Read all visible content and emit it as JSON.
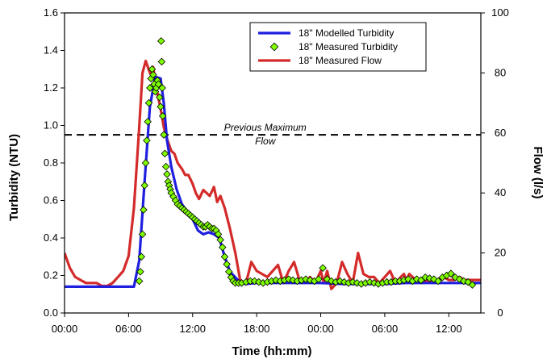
{
  "chart_data": {
    "type": "line",
    "title": "",
    "xlabel": "Time (hh:mm)",
    "ylabel_left": "Turbidity (NTU)",
    "ylabel_right": "Flow (l/s)",
    "x_unit": "hours from first 00:00",
    "xlim": [
      0,
      39
    ],
    "ylim_left": [
      0,
      1.6
    ],
    "ylim_right": [
      0,
      100
    ],
    "x_ticks": [
      {
        "value": 0,
        "label": "00:00"
      },
      {
        "value": 6,
        "label": "06:00"
      },
      {
        "value": 12,
        "label": "12:00"
      },
      {
        "value": 18,
        "label": "18:00"
      },
      {
        "value": 24,
        "label": "00:00"
      },
      {
        "value": 30,
        "label": "06:00"
      },
      {
        "value": 36,
        "label": "12:00"
      }
    ],
    "y_left_ticks": [
      "0.0",
      "0.2",
      "0.4",
      "0.6",
      "0.8",
      "1.0",
      "1.2",
      "1.4",
      "1.6"
    ],
    "y_right_ticks": [
      "0",
      "20",
      "40",
      "60",
      "80",
      "100"
    ],
    "legend": {
      "placement": "top-right"
    },
    "reference_line": {
      "axis": "left",
      "value": 0.95,
      "label_line1": "Previous Maximum",
      "label_line2": "Flow"
    },
    "series": [
      {
        "name": "18\" Modelled Turbidity",
        "axis": "left",
        "style": "line",
        "color": "#1f1fe0",
        "x": [
          0,
          6.5,
          7.0,
          7.5,
          8.0,
          8.5,
          9.0,
          9.3,
          9.6,
          10.0,
          10.5,
          11.0,
          11.5,
          12.0,
          12.5,
          13.0,
          13.5,
          14.0,
          14.5,
          15.0,
          15.5,
          16.0,
          16.5,
          17.0,
          18.0,
          20.0,
          22.0,
          24.0,
          26.0,
          28.0,
          30.0,
          32.0,
          34.0,
          36.0,
          38.0,
          39.0
        ],
        "y": [
          0.14,
          0.14,
          0.28,
          0.7,
          1.1,
          1.26,
          1.25,
          1.12,
          0.92,
          0.78,
          0.66,
          0.58,
          0.54,
          0.5,
          0.44,
          0.42,
          0.43,
          0.42,
          0.4,
          0.3,
          0.22,
          0.19,
          0.16,
          0.155,
          0.16,
          0.16,
          0.16,
          0.16,
          0.155,
          0.155,
          0.155,
          0.16,
          0.16,
          0.16,
          0.16,
          0.16
        ]
      },
      {
        "name": "18\" Measured Turbidity",
        "axis": "left",
        "style": "marker",
        "color": "#7fff00",
        "edge_color": "#000000",
        "x": [
          7.0,
          7.1,
          7.2,
          7.3,
          7.4,
          7.5,
          7.6,
          7.7,
          7.8,
          7.9,
          8.0,
          8.1,
          8.2,
          8.3,
          8.4,
          8.5,
          8.6,
          8.7,
          8.8,
          8.9,
          9.0,
          9.05,
          9.1,
          9.15,
          9.2,
          9.3,
          9.4,
          9.5,
          9.6,
          9.7,
          9.8,
          9.9,
          10.0,
          10.2,
          10.4,
          10.6,
          10.8,
          11.0,
          11.2,
          11.4,
          11.6,
          11.8,
          12.0,
          12.2,
          12.4,
          12.6,
          12.8,
          13.0,
          13.2,
          13.4,
          13.6,
          13.8,
          14.0,
          14.2,
          14.4,
          14.6,
          14.8,
          15.0,
          15.2,
          15.4,
          15.6,
          15.8,
          16.0,
          16.3,
          16.6,
          17.0,
          17.4,
          17.8,
          18.2,
          18.6,
          19.0,
          19.4,
          19.8,
          20.2,
          20.6,
          21.0,
          21.4,
          21.8,
          22.2,
          22.6,
          23.0,
          23.4,
          23.8,
          24.2,
          24.6,
          25.0,
          25.4,
          25.8,
          26.2,
          26.6,
          27.0,
          27.4,
          27.8,
          28.2,
          28.6,
          29.0,
          29.4,
          29.8,
          30.2,
          30.6,
          31.0,
          31.4,
          31.8,
          32.2,
          32.6,
          33.0,
          33.4,
          33.8,
          34.2,
          34.6,
          35.0,
          35.4,
          35.8,
          36.2,
          36.6,
          37.0,
          37.4,
          37.8,
          38.2
        ],
        "y": [
          0.17,
          0.22,
          0.3,
          0.42,
          0.55,
          0.68,
          0.8,
          0.92,
          1.02,
          1.12,
          1.2,
          1.25,
          1.3,
          1.27,
          1.22,
          1.18,
          1.2,
          1.24,
          1.22,
          1.15,
          1.1,
          1.45,
          1.34,
          1.2,
          1.05,
          0.95,
          0.85,
          0.78,
          0.74,
          0.7,
          0.68,
          0.66,
          0.64,
          0.62,
          0.6,
          0.58,
          0.57,
          0.56,
          0.55,
          0.54,
          0.53,
          0.52,
          0.51,
          0.5,
          0.49,
          0.48,
          0.47,
          0.46,
          0.46,
          0.47,
          0.46,
          0.45,
          0.45,
          0.44,
          0.42,
          0.39,
          0.35,
          0.3,
          0.26,
          0.22,
          0.19,
          0.17,
          0.16,
          0.16,
          0.16,
          0.165,
          0.17,
          0.17,
          0.165,
          0.16,
          0.165,
          0.17,
          0.175,
          0.17,
          0.175,
          0.18,
          0.175,
          0.17,
          0.175,
          0.18,
          0.175,
          0.17,
          0.18,
          0.24,
          0.18,
          0.17,
          0.165,
          0.17,
          0.165,
          0.16,
          0.165,
          0.16,
          0.155,
          0.16,
          0.165,
          0.16,
          0.155,
          0.16,
          0.165,
          0.165,
          0.17,
          0.17,
          0.175,
          0.18,
          0.17,
          0.18,
          0.175,
          0.19,
          0.185,
          0.18,
          0.17,
          0.19,
          0.2,
          0.21,
          0.19,
          0.18,
          0.17,
          0.165,
          0.15
        ]
      },
      {
        "name": "18\" Measured Flow",
        "axis": "right",
        "style": "line",
        "color": "#d42a2a",
        "x": [
          0,
          0.5,
          1.0,
          1.5,
          2.0,
          2.5,
          3.0,
          3.5,
          4.0,
          4.5,
          5.0,
          5.5,
          6.0,
          6.5,
          7.0,
          7.3,
          7.6,
          8.0,
          8.3,
          8.6,
          9.0,
          9.3,
          9.6,
          10.0,
          10.3,
          10.6,
          11.0,
          11.3,
          11.6,
          12.0,
          12.3,
          12.6,
          13.0,
          13.3,
          13.6,
          14.0,
          14.3,
          14.6,
          15.0,
          15.5,
          16.0,
          16.5,
          17.0,
          17.5,
          18.0,
          18.5,
          19.0,
          19.5,
          20.0,
          20.5,
          21.0,
          21.5,
          22.0,
          22.5,
          23.0,
          23.5,
          24.0,
          24.3,
          24.6,
          25.0,
          25.5,
          26.0,
          26.5,
          27.0,
          27.5,
          28.0,
          28.5,
          29.0,
          29.5,
          30.0,
          30.5,
          31.0,
          31.5,
          31.8,
          32.0,
          32.3,
          32.6,
          33.0,
          33.5,
          34.0,
          34.5,
          35.0,
          35.5,
          36.0,
          36.5,
          37.0,
          37.5,
          38.0,
          38.5,
          39.0
        ],
        "y": [
          20,
          15,
          12,
          11,
          10,
          10,
          10,
          9,
          9,
          10,
          12,
          14,
          19,
          35,
          62,
          80,
          84,
          80,
          82,
          75,
          68,
          62,
          58,
          54,
          53,
          50,
          48,
          46,
          46,
          43,
          40,
          38,
          41,
          40,
          39,
          42,
          37,
          39,
          35,
          28,
          20,
          10,
          10,
          17,
          14,
          13,
          12,
          14,
          16,
          10,
          14,
          17,
          11,
          10,
          12,
          10,
          14,
          10,
          14,
          8,
          10,
          17,
          13,
          10,
          20,
          13,
          12,
          12,
          10,
          12,
          14,
          10,
          12,
          13,
          11,
          13,
          12,
          11,
          10,
          11,
          10,
          11,
          12,
          11,
          11,
          12,
          11,
          11,
          11,
          11
        ]
      }
    ]
  }
}
